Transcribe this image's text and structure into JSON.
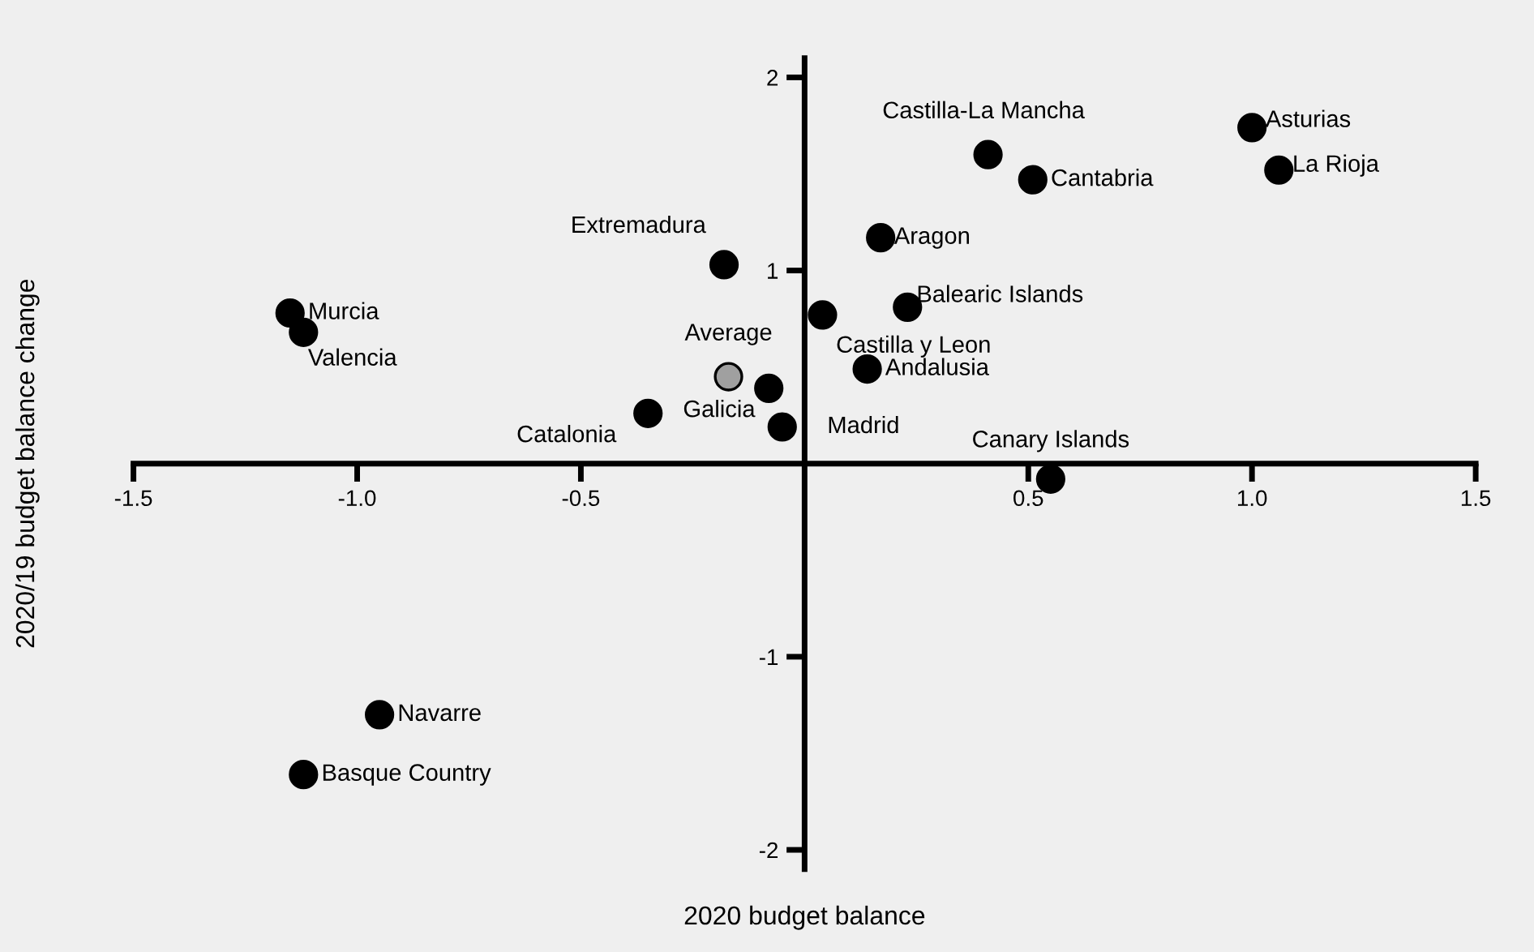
{
  "chart_data": {
    "type": "scatter",
    "xlabel": "2020 budget balance",
    "ylabel": "2020/19 budget balance change",
    "xlim": [
      -1.5,
      1.5
    ],
    "ylim": [
      -2.1,
      2.1
    ],
    "xticks": [
      -1.5,
      {
        "value": -1.0,
        "label": "-1.0"
      },
      -0.5,
      {
        "value": 0.5,
        "label": "0.5"
      },
      {
        "value": 1.0,
        "label": "1.0"
      },
      1.5
    ],
    "yticks": [
      -2,
      -1,
      1,
      2
    ],
    "grid": false,
    "marker": "circle",
    "series": [
      {
        "x": [
          1.0,
          1.06,
          0.41,
          0.51,
          0.17,
          -0.18,
          0.23,
          0.04,
          0.14,
          -0.08,
          -0.05,
          -0.35,
          -1.15,
          -1.12,
          0.55,
          -0.95,
          -1.12
        ],
        "values": [
          1.74,
          1.52,
          1.6,
          1.47,
          1.17,
          1.03,
          0.81,
          0.77,
          0.49,
          0.39,
          0.19,
          0.26,
          0.78,
          0.68,
          -0.08,
          -1.3,
          -1.61
        ],
        "color": "#000000"
      },
      {
        "x": [
          -0.17
        ],
        "values": [
          0.45
        ],
        "color": "#a0a0a0"
      }
    ],
    "annotations": [
      {
        "text": "Asturias",
        "x": 1.0,
        "y": 1.74
      },
      {
        "text": "La Rioja",
        "x": 1.06,
        "y": 1.52
      },
      {
        "text": "Castilla-La Mancha",
        "x": 0.41,
        "y": 1.6
      },
      {
        "text": "Cantabria",
        "x": 0.51,
        "y": 1.47
      },
      {
        "text": "Aragon",
        "x": 0.17,
        "y": 1.17
      },
      {
        "text": "Extremadura",
        "x": -0.18,
        "y": 1.03
      },
      {
        "text": "Balearic Islands",
        "x": 0.23,
        "y": 0.81
      },
      {
        "text": "Castilla y Leon",
        "x": 0.04,
        "y": 0.77
      },
      {
        "text": "Andalusia",
        "x": 0.14,
        "y": 0.49
      },
      {
        "text": "Galicia",
        "x": -0.08,
        "y": 0.39
      },
      {
        "text": "Madrid",
        "x": -0.05,
        "y": 0.19
      },
      {
        "text": "Catalonia",
        "x": -0.35,
        "y": 0.26
      },
      {
        "text": "Murcia",
        "x": -1.15,
        "y": 0.78
      },
      {
        "text": "Valencia",
        "x": -1.12,
        "y": 0.68
      },
      {
        "text": "Canary Islands",
        "x": 0.55,
        "y": -0.08
      },
      {
        "text": "Navarre",
        "x": -0.95,
        "y": -1.3
      },
      {
        "text": "Basque Country",
        "x": -1.12,
        "y": -1.61
      },
      {
        "text": "Average",
        "x": -0.17,
        "y": 0.45
      }
    ]
  }
}
